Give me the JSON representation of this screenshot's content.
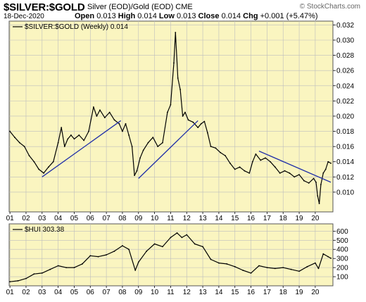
{
  "header": {
    "symbol": "$SILVER:$GOLD",
    "description": "Silver (EOD)/Gold (EOD)  CME",
    "credit": "© StockCharts.com",
    "date": "18-Dec-2020",
    "open_label": "Open",
    "open": "0.013",
    "high_label": "High",
    "high": "0.014",
    "low_label": "Low",
    "low": "0.013",
    "close_label": "Close",
    "close": "0.014",
    "chg_label": "Chg",
    "chg": "+0.001 (+5.47%)"
  },
  "colors": {
    "panel_bg": "#faf5c0",
    "series": "#000000",
    "trendline": "#1f2ea8",
    "grid": "#bdbdbd"
  },
  "chart_data": [
    {
      "type": "line",
      "legend": "$SILVER:$GOLD (Weekly) 0.014",
      "ylim": [
        0.0074,
        0.0325
      ],
      "yticks": [
        0.01,
        0.012,
        0.014,
        0.016,
        0.018,
        0.02,
        0.022,
        0.024,
        0.026,
        0.028,
        0.03,
        0.032
      ],
      "ytick_labels": [
        "0.010",
        "0.012",
        "0.014",
        "0.016",
        "0.018",
        "0.020",
        "0.022",
        "0.024",
        "0.026",
        "0.028",
        "0.030",
        "0.032"
      ],
      "x": [
        2001.0,
        2001.3,
        2001.6,
        2001.9,
        2002.2,
        2002.5,
        2002.8,
        2003.1,
        2003.4,
        2003.7,
        2004.0,
        2004.2,
        2004.4,
        2004.6,
        2004.8,
        2005.0,
        2005.3,
        2005.6,
        2005.9,
        2006.2,
        2006.4,
        2006.6,
        2006.9,
        2007.2,
        2007.5,
        2007.8,
        2008.0,
        2008.2,
        2008.4,
        2008.6,
        2008.75,
        2008.9,
        2009.1,
        2009.3,
        2009.6,
        2009.9,
        2010.2,
        2010.5,
        2010.8,
        2011.0,
        2011.2,
        2011.3,
        2011.45,
        2011.6,
        2011.75,
        2011.9,
        2012.1,
        2012.4,
        2012.7,
        2012.9,
        2013.1,
        2013.3,
        2013.5,
        2013.8,
        2014.1,
        2014.4,
        2014.7,
        2015.0,
        2015.3,
        2015.6,
        2015.9,
        2016.1,
        2016.3,
        2016.6,
        2016.9,
        2017.2,
        2017.5,
        2017.8,
        2018.1,
        2018.4,
        2018.7,
        2019.0,
        2019.3,
        2019.6,
        2019.9,
        2020.05,
        2020.15,
        2020.25,
        2020.35,
        2020.5,
        2020.65,
        2020.8,
        2020.97
      ],
      "values": [
        0.018,
        0.0172,
        0.0165,
        0.016,
        0.0148,
        0.014,
        0.013,
        0.0125,
        0.0133,
        0.014,
        0.0165,
        0.0185,
        0.016,
        0.017,
        0.0175,
        0.017,
        0.0175,
        0.0168,
        0.018,
        0.0212,
        0.02,
        0.0208,
        0.0198,
        0.0205,
        0.0195,
        0.019,
        0.018,
        0.019,
        0.0175,
        0.016,
        0.0122,
        0.0128,
        0.0145,
        0.0155,
        0.0165,
        0.0172,
        0.016,
        0.0165,
        0.0205,
        0.0215,
        0.027,
        0.031,
        0.025,
        0.0235,
        0.02,
        0.0205,
        0.0195,
        0.0192,
        0.0185,
        0.019,
        0.0193,
        0.0178,
        0.016,
        0.0158,
        0.0152,
        0.0148,
        0.0138,
        0.013,
        0.0133,
        0.0128,
        0.0125,
        0.014,
        0.015,
        0.0142,
        0.0145,
        0.014,
        0.0133,
        0.0125,
        0.0128,
        0.0125,
        0.012,
        0.0123,
        0.0115,
        0.0112,
        0.0118,
        0.0113,
        0.0095,
        0.0085,
        0.011,
        0.0125,
        0.013,
        0.014,
        0.0138
      ],
      "trendlines": [
        {
          "x": [
            2003.0,
            2007.9
          ],
          "y": [
            0.012,
            0.0194
          ]
        },
        {
          "x": [
            2009.0,
            2012.7
          ],
          "y": [
            0.0118,
            0.0194
          ]
        },
        {
          "x": [
            2016.5,
            2020.97
          ],
          "y": [
            0.0154,
            0.0113
          ]
        }
      ]
    },
    {
      "type": "line",
      "legend": "$HUI 303.38",
      "ylim": [
        0,
        680
      ],
      "yticks": [
        100,
        200,
        300,
        400,
        500,
        600
      ],
      "ytick_labels": [
        "100",
        "200",
        "300",
        "400",
        "500",
        "600"
      ],
      "x": [
        2001.0,
        2001.5,
        2002.0,
        2002.5,
        2003.0,
        2003.5,
        2004.0,
        2004.5,
        2005.0,
        2005.5,
        2006.0,
        2006.5,
        2007.0,
        2007.5,
        2008.0,
        2008.4,
        2008.8,
        2009.0,
        2009.5,
        2010.0,
        2010.5,
        2011.0,
        2011.4,
        2011.7,
        2012.0,
        2012.5,
        2013.0,
        2013.5,
        2014.0,
        2014.5,
        2015.0,
        2015.5,
        2016.0,
        2016.5,
        2017.0,
        2017.5,
        2018.0,
        2018.5,
        2019.0,
        2019.5,
        2020.0,
        2020.2,
        2020.5,
        2020.8,
        2020.97
      ],
      "values": [
        45,
        55,
        80,
        130,
        140,
        180,
        220,
        200,
        200,
        240,
        330,
        320,
        340,
        380,
        440,
        400,
        170,
        260,
        380,
        460,
        430,
        530,
        580,
        530,
        560,
        460,
        430,
        290,
        250,
        240,
        210,
        170,
        140,
        220,
        200,
        190,
        200,
        180,
        160,
        210,
        250,
        190,
        350,
        320,
        303
      ]
    }
  ],
  "x_axis": {
    "min": 2000.95,
    "max": 2021.1,
    "ticks": [
      2001,
      2002,
      2003,
      2004,
      2005,
      2006,
      2007,
      2008,
      2009,
      2010,
      2011,
      2012,
      2013,
      2014,
      2015,
      2016,
      2017,
      2018,
      2019,
      2020
    ],
    "tick_labels": [
      "01",
      "02",
      "03",
      "04",
      "05",
      "06",
      "07",
      "08",
      "09",
      "10",
      "11",
      "12",
      "13",
      "14",
      "15",
      "16",
      "17",
      "18",
      "19",
      "20"
    ]
  }
}
